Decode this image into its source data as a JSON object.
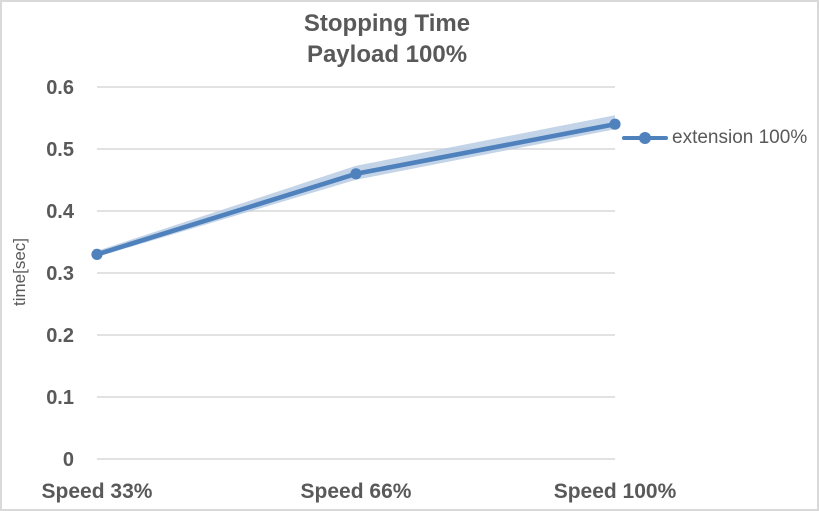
{
  "chart_data": {
    "type": "line",
    "title_line1": "Stopping Time",
    "title_line2": "Payload 100%",
    "ylabel": "time[sec]",
    "xlabel": "",
    "categories": [
      "Speed 33%",
      "Speed 66%",
      "Speed 100%"
    ],
    "series": [
      {
        "name": "extension 100%",
        "values": [
          0.33,
          0.46,
          0.54
        ],
        "marker": "circle"
      }
    ],
    "ylim": [
      0,
      0.6
    ],
    "ytick_step": 0.1,
    "ytick_labels": [
      "0",
      "0.1",
      "0.2",
      "0.3",
      "0.4",
      "0.5",
      "0.6"
    ],
    "grid": true,
    "legend_position": "right",
    "colors": {
      "line": "#4F81BD",
      "glow": "#B8CCE4",
      "text": "#595959",
      "grid": "#D9D9D9",
      "border": "#D9D9D9",
      "background": "#FFFFFF"
    }
  }
}
